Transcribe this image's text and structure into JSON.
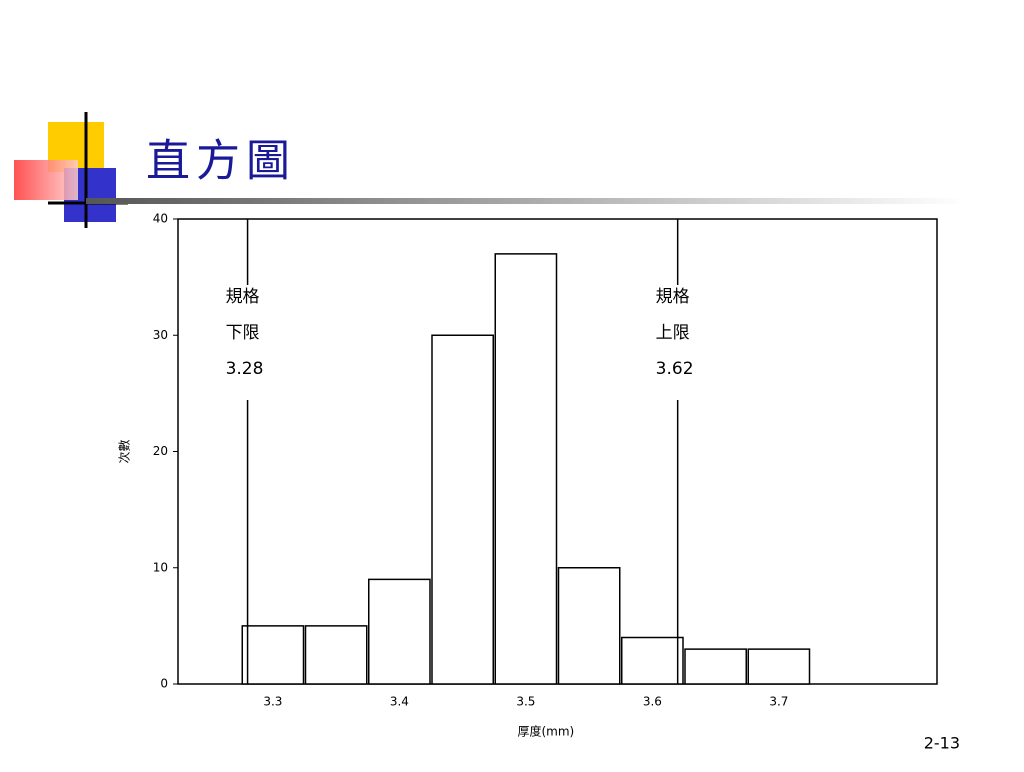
{
  "slide": {
    "title": "直方圖",
    "page_number": "2-13"
  },
  "chart_data": {
    "type": "histogram",
    "x_label": "厚度(mm)",
    "y_label": "次數",
    "bins": [
      3.275,
      3.325,
      3.375,
      3.425,
      3.475,
      3.525,
      3.575,
      3.625,
      3.675,
      3.725
    ],
    "values": [
      5,
      5,
      9,
      30,
      37,
      10,
      4,
      3,
      3
    ],
    "color": "#ffffff",
    "xlim": [
      3.225,
      3.825
    ],
    "xticks": [
      3.3,
      3.4,
      3.5,
      3.6,
      3.7
    ],
    "ylim": [
      0,
      40
    ],
    "yticks": [
      0,
      10,
      20,
      30,
      40
    ],
    "annotations": [
      {
        "lines": [
          "規格",
          "下限"
        ],
        "value": 3.28
      },
      {
        "lines": [
          "規格",
          "上限"
        ],
        "value": 3.62
      }
    ]
  }
}
